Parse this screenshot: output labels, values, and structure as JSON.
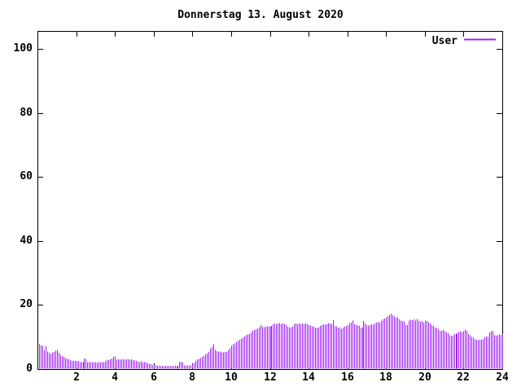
{
  "chart_data": {
    "type": "bar",
    "style": "impulses",
    "title": "Donnerstag 13. August 2020",
    "xlabel": "",
    "ylabel": "",
    "xlim": [
      0,
      24
    ],
    "ylim": [
      0,
      100
    ],
    "xticks": [
      2,
      4,
      6,
      8,
      10,
      12,
      14,
      16,
      18,
      20,
      22,
      24
    ],
    "yticks": [
      0,
      20,
      40,
      60,
      80,
      100
    ],
    "grid": false,
    "legend_position": "top-right-inside",
    "x_minutes_step": 5,
    "series": [
      {
        "name": "User",
        "color": "#a020f0",
        "values": [
          7.8,
          7.4,
          7.3,
          5.9,
          7.1,
          5.5,
          5.1,
          4.7,
          5.1,
          5.3,
          5.7,
          6.0,
          5.1,
          4.3,
          3.9,
          3.8,
          3.4,
          3.2,
          3.0,
          2.8,
          2.6,
          2.5,
          2.6,
          2.5,
          2.4,
          2.2,
          2.1,
          2.2,
          3.3,
          3.0,
          2.2,
          2.1,
          2.2,
          2.1,
          2.0,
          2.1,
          2.0,
          2.1,
          2.0,
          2.1,
          2.2,
          2.4,
          2.9,
          2.8,
          3.0,
          3.3,
          3.8,
          4.0,
          2.9,
          3.0,
          2.9,
          3.1,
          3.0,
          2.9,
          3.0,
          3.1,
          2.9,
          3.0,
          2.8,
          2.7,
          2.5,
          2.3,
          2.2,
          2.4,
          2.2,
          2.1,
          2.0,
          1.8,
          1.6,
          1.5,
          1.3,
          1.2,
          1.1,
          1.0,
          1.0,
          0.9,
          1.0,
          0.9,
          1.0,
          0.9,
          1.0,
          0.9,
          1.0,
          0.9,
          1.0,
          0.9,
          1.0,
          2.2,
          2.3,
          2.0,
          1.1,
          1.0,
          1.1,
          1.0,
          1.2,
          1.5,
          1.8,
          2.5,
          3.0,
          3.2,
          3.4,
          3.8,
          4.1,
          4.6,
          5.0,
          5.3,
          6.4,
          7.0,
          7.7,
          6.0,
          5.6,
          5.3,
          5.5,
          5.2,
          5.2,
          5.3,
          5.2,
          5.8,
          6.5,
          7.2,
          7.7,
          8.0,
          8.5,
          8.8,
          9.2,
          9.4,
          9.8,
          10.2,
          10.6,
          10.8,
          11.0,
          11.5,
          12.0,
          12.2,
          12.4,
          12.6,
          13.0,
          13.8,
          13.2,
          13.0,
          13.2,
          13.4,
          13.2,
          13.4,
          13.5,
          14.0,
          14.2,
          14.0,
          14.2,
          14.4,
          14.0,
          14.2,
          14.0,
          13.8,
          13.2,
          13.0,
          13.0,
          13.2,
          14.0,
          14.2,
          14.0,
          14.2,
          14.0,
          14.2,
          14.0,
          14.2,
          14.0,
          13.8,
          13.6,
          13.2,
          13.4,
          12.8,
          12.8,
          13.0,
          13.5,
          13.8,
          14.0,
          13.8,
          14.0,
          14.3,
          14.3,
          14.0,
          15.3,
          13.5,
          13.4,
          12.8,
          13.0,
          12.5,
          13.0,
          13.2,
          13.5,
          13.6,
          14.2,
          14.5,
          15.2,
          14.0,
          13.8,
          13.6,
          13.5,
          12.8,
          13.0,
          15.0,
          14.2,
          13.8,
          13.6,
          13.8,
          14.0,
          13.8,
          14.3,
          14.5,
          14.8,
          14.5,
          15.0,
          15.5,
          15.8,
          16.0,
          16.5,
          16.8,
          17.3,
          16.8,
          16.4,
          16.0,
          16.2,
          15.5,
          15.2,
          15.0,
          14.8,
          13.8,
          13.7,
          15.2,
          15.4,
          15.3,
          15.5,
          15.2,
          15.6,
          15.0,
          14.8,
          15.0,
          14.5,
          15.2,
          15.0,
          14.6,
          14.3,
          13.8,
          13.5,
          13.0,
          12.8,
          12.5,
          12.0,
          11.9,
          12.2,
          11.8,
          11.4,
          11.2,
          10.5,
          10.3,
          10.4,
          11.0,
          10.9,
          11.2,
          11.6,
          11.7,
          11.5,
          11.8,
          12.3,
          11.9,
          11.0,
          10.6,
          10.0,
          9.8,
          9.3,
          9.2,
          9.0,
          9.2,
          9.1,
          9.3,
          9.9,
          10.2,
          10.0,
          11.5,
          11.8,
          12.0,
          10.5,
          10.4,
          10.6,
          10.8,
          10.7,
          11.0
        ]
      }
    ],
    "colors": {
      "axis": "#000000",
      "background": "#ffffff",
      "bar": "#a020f0"
    }
  }
}
